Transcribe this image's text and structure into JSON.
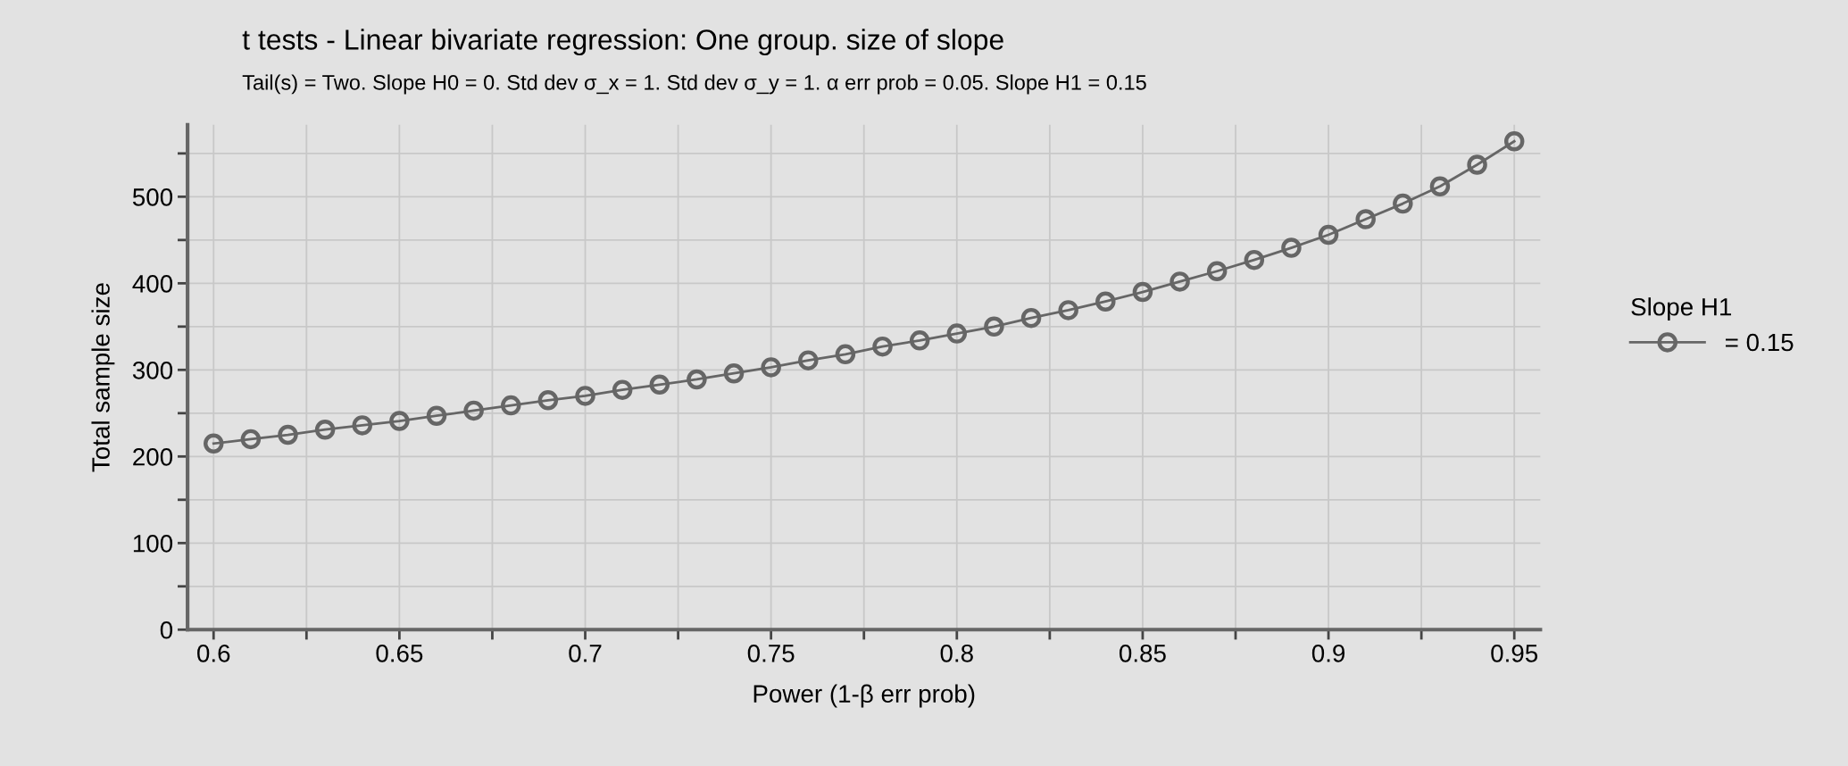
{
  "chart_data": {
    "type": "line",
    "title": "t tests - Linear bivariate regression: One group. size of slope",
    "subtitle": "Tail(s) = Two. Slope H0 = 0. Std dev σ_x = 1. Std dev σ_y = 1. α err prob = 0.05. Slope H1 = 0.15",
    "xlabel": "Power (1-β err prob)",
    "ylabel": "Total sample size",
    "legend_title": "Slope H1",
    "x": [
      0.6,
      0.61,
      0.62,
      0.63,
      0.64,
      0.65,
      0.66,
      0.67,
      0.68,
      0.69,
      0.7,
      0.71,
      0.72,
      0.73,
      0.74,
      0.75,
      0.76,
      0.77,
      0.78,
      0.79,
      0.8,
      0.81,
      0.82,
      0.83,
      0.84,
      0.85,
      0.86,
      0.87,
      0.88,
      0.89,
      0.9,
      0.91,
      0.92,
      0.93,
      0.94,
      0.95
    ],
    "series": [
      {
        "name": "= 0.15",
        "color": "#666666",
        "values": [
          215,
          220,
          225,
          231,
          236,
          241,
          247,
          253,
          259,
          265,
          270,
          277,
          283,
          289,
          296,
          303,
          311,
          318,
          327,
          334,
          342,
          350,
          360,
          369,
          379,
          390,
          402,
          414,
          427,
          441,
          456,
          474,
          492,
          512,
          537,
          564
        ]
      }
    ],
    "xlim": [
      0.593,
      0.957
    ],
    "ylim": [
      0,
      583
    ],
    "xticks": [
      0.6,
      {
        "value": 0.625,
        "label": null
      },
      0.65,
      {
        "value": 0.675,
        "label": null
      },
      0.7,
      {
        "value": 0.725,
        "label": null
      },
      0.75,
      {
        "value": 0.775,
        "label": null
      },
      0.8,
      {
        "value": 0.825,
        "label": null
      },
      0.85,
      {
        "value": 0.875,
        "label": null
      },
      0.9,
      {
        "value": 0.925,
        "label": null
      },
      0.95
    ],
    "yticks": [
      0,
      {
        "value": 50,
        "label": null
      },
      100,
      {
        "value": 150,
        "label": null
      },
      200,
      {
        "value": 250,
        "label": null
      },
      300,
      {
        "value": 350,
        "label": null
      },
      400,
      {
        "value": 450,
        "label": null
      },
      500,
      {
        "value": 550,
        "label": null
      }
    ],
    "grid": true,
    "legend": "right",
    "marker": "circle",
    "line_style": "solid"
  }
}
